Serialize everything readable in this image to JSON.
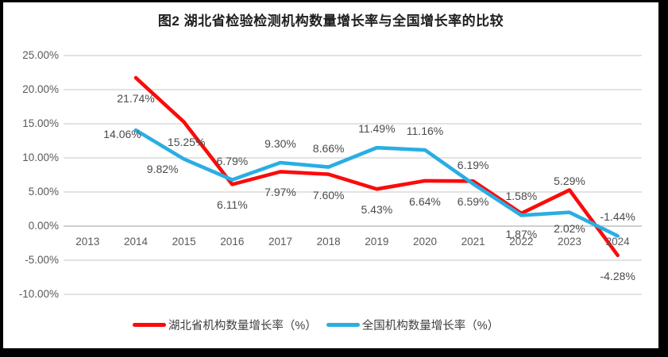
{
  "chart_data": {
    "type": "line",
    "title": "图2 湖北省检验检测机构数量增长率与全国增长率的比较",
    "categories": [
      "2013",
      "2014",
      "2015",
      "2016",
      "2017",
      "2018",
      "2019",
      "2020",
      "2021",
      "2022",
      "2023",
      "2024"
    ],
    "series": [
      {
        "name": "湖北省机构数量增长率（%）",
        "color": "#fb0b0b",
        "values": [
          null,
          21.74,
          15.25,
          6.11,
          7.97,
          7.6,
          5.43,
          6.64,
          6.59,
          1.87,
          5.29,
          -4.28
        ],
        "labels": [
          null,
          "21.74%",
          "15.25%",
          "6.11%",
          "7.97%",
          "7.60%",
          "5.43%",
          "6.64%",
          "6.59%",
          "1.87%",
          "5.29%",
          "-4.28%"
        ]
      },
      {
        "name": "全国机构数量增长率（%）",
        "color": "#29aee3",
        "values": [
          null,
          14.06,
          9.82,
          6.79,
          9.3,
          8.66,
          11.49,
          11.16,
          6.19,
          1.58,
          2.02,
          -1.44
        ],
        "labels": [
          null,
          "14.06%",
          "9.82%",
          "6.79%",
          "9.30%",
          "8.66%",
          "11.49%",
          "11.16%",
          "6.19%",
          "1.58%",
          "2.02%",
          "-1.44%"
        ]
      }
    ],
    "ylim": [
      -10,
      25
    ],
    "ytick_step": 5,
    "ytick_labels": [
      "25.00%",
      "20.00%",
      "15.00%",
      "10.00%",
      "5.00%",
      "0.00%",
      "-5.00%",
      "-10.00%"
    ],
    "grid": true,
    "legend_position": "bottom"
  },
  "colors": {
    "gridline": "#dadada",
    "axis_line": "#cfcfcf",
    "border": "#000000",
    "hubei_red": "#fb0b0b",
    "national_blue": "#29aee3"
  }
}
